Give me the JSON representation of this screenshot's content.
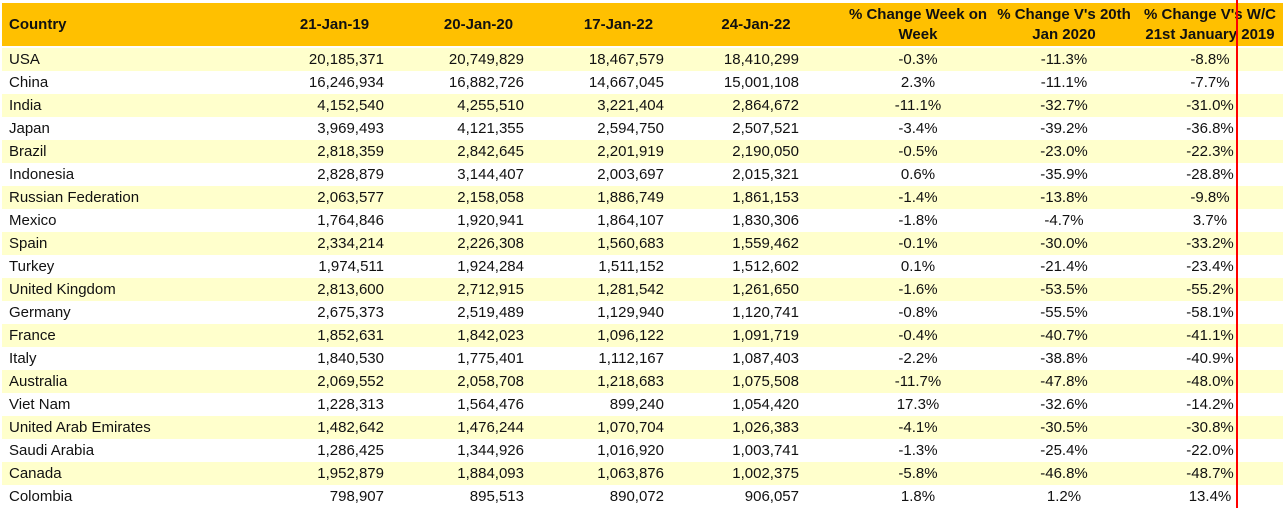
{
  "chart_data": {
    "type": "table",
    "columns": [
      "Country",
      "21-Jan-19",
      "20-Jan-20",
      "17-Jan-22",
      "24-Jan-22",
      "% Change Week on Week",
      "% Change V's 20th Jan 2020",
      "% Change V's W/C 21st January 2019"
    ],
    "rows": [
      [
        "USA",
        "20,185,371",
        "20,749,829",
        "18,467,579",
        "18,410,299",
        "-0.3%",
        "-11.3%",
        "-8.8%"
      ],
      [
        "China",
        "16,246,934",
        "16,882,726",
        "14,667,045",
        "15,001,108",
        "2.3%",
        "-11.1%",
        "-7.7%"
      ],
      [
        "India",
        "4,152,540",
        "4,255,510",
        "3,221,404",
        "2,864,672",
        "-11.1%",
        "-32.7%",
        "-31.0%"
      ],
      [
        "Japan",
        "3,969,493",
        "4,121,355",
        "2,594,750",
        "2,507,521",
        "-3.4%",
        "-39.2%",
        "-36.8%"
      ],
      [
        "Brazil",
        "2,818,359",
        "2,842,645",
        "2,201,919",
        "2,190,050",
        "-0.5%",
        "-23.0%",
        "-22.3%"
      ],
      [
        "Indonesia",
        "2,828,879",
        "3,144,407",
        "2,003,697",
        "2,015,321",
        "0.6%",
        "-35.9%",
        "-28.8%"
      ],
      [
        "Russian Federation",
        "2,063,577",
        "2,158,058",
        "1,886,749",
        "1,861,153",
        "-1.4%",
        "-13.8%",
        "-9.8%"
      ],
      [
        "Mexico",
        "1,764,846",
        "1,920,941",
        "1,864,107",
        "1,830,306",
        "-1.8%",
        "-4.7%",
        "3.7%"
      ],
      [
        "Spain",
        "2,334,214",
        "2,226,308",
        "1,560,683",
        "1,559,462",
        "-0.1%",
        "-30.0%",
        "-33.2%"
      ],
      [
        "Turkey",
        "1,974,511",
        "1,924,284",
        "1,511,152",
        "1,512,602",
        "0.1%",
        "-21.4%",
        "-23.4%"
      ],
      [
        "United Kingdom",
        "2,813,600",
        "2,712,915",
        "1,281,542",
        "1,261,650",
        "-1.6%",
        "-53.5%",
        "-55.2%"
      ],
      [
        "Germany",
        "2,675,373",
        "2,519,489",
        "1,129,940",
        "1,120,741",
        "-0.8%",
        "-55.5%",
        "-58.1%"
      ],
      [
        "France",
        "1,852,631",
        "1,842,023",
        "1,096,122",
        "1,091,719",
        "-0.4%",
        "-40.7%",
        "-41.1%"
      ],
      [
        "Italy",
        "1,840,530",
        "1,775,401",
        "1,112,167",
        "1,087,403",
        "-2.2%",
        "-38.8%",
        "-40.9%"
      ],
      [
        "Australia",
        "2,069,552",
        "2,058,708",
        "1,218,683",
        "1,075,508",
        "-11.7%",
        "-47.8%",
        "-48.0%"
      ],
      [
        "Viet Nam",
        "1,228,313",
        "1,564,476",
        "899,240",
        "1,054,420",
        "17.3%",
        "-32.6%",
        "-14.2%"
      ],
      [
        "United Arab Emirates",
        "1,482,642",
        "1,476,244",
        "1,070,704",
        "1,026,383",
        "-4.1%",
        "-30.5%",
        "-30.8%"
      ],
      [
        "Saudi Arabia",
        "1,286,425",
        "1,344,926",
        "1,016,920",
        "1,003,741",
        "-1.3%",
        "-25.4%",
        "-22.0%"
      ],
      [
        "Canada",
        "1,952,879",
        "1,884,093",
        "1,063,876",
        "1,002,375",
        "-5.8%",
        "-46.8%",
        "-48.7%"
      ],
      [
        "Colombia",
        "798,907",
        "895,513",
        "890,072",
        "906,057",
        "1.8%",
        "1.2%",
        "13.4%"
      ]
    ]
  },
  "colors": {
    "header_bg": "#FFC000",
    "row_alt_bg": "#FFFFCC",
    "row_bg": "#FFFFFF",
    "right_border_accent": "#FF0000",
    "text": "#111111"
  }
}
